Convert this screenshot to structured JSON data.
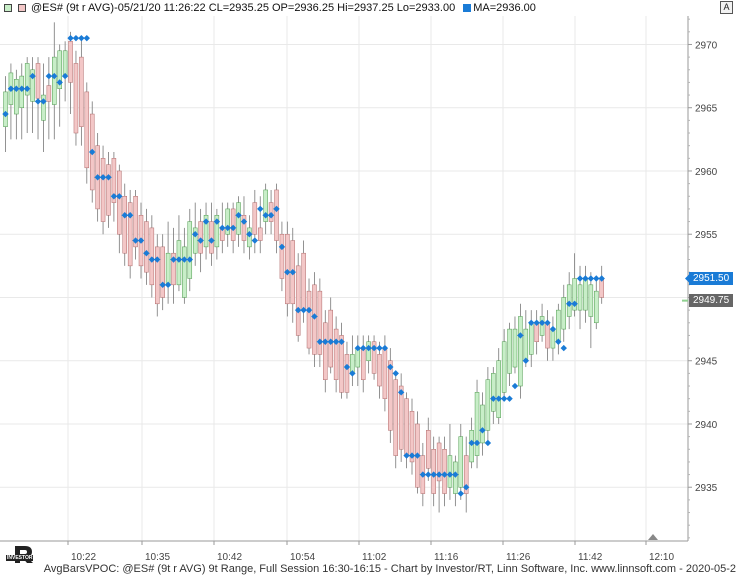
{
  "header": {
    "symbol_text": "@ES# (9t r AVG)-05/21/20 11:26:22 CL=2935.25 OP=2936.25 Hi=2937.25 Lo=2933.00",
    "ma_text": "MA=2936.00",
    "close_glyph": "A"
  },
  "footer": {
    "text": "AvgBarsVPOC: @ES# (9t r AVG) 9t Range, Full Session 16:30-16:15 - Chart by Investor/RT, Linn Software, Inc. www.linnsoft.com - 2020-05-2"
  },
  "logo": {
    "text": "INVESTOR"
  },
  "colors": {
    "up": "#c8eec8",
    "up_stroke": "#4c9a4c",
    "down": "#f3c7c7",
    "down_stroke": "#b06a6a",
    "wick": "#777777",
    "ma": "#1a7bd6",
    "grid": "#e9e9e9",
    "price_tag": "#1a7bd6",
    "last_tag": "#666666"
  },
  "chart_data": {
    "type": "candlestick",
    "x_tick_labels": [
      "10:22",
      "10:35",
      "10:42",
      "10:54",
      "11:02",
      "11:16",
      "11:26",
      "11:42",
      "12:10"
    ],
    "y_ticks": [
      2935,
      2940,
      2945,
      2950,
      2955,
      2960,
      2965,
      2970
    ],
    "y_range": [
      2930.75,
      2972.25
    ],
    "price_tag": "2951.50",
    "last_tag": "2949.75",
    "candles": [
      {
        "o": 2963.5,
        "c": 2966.25,
        "h": 2967.5,
        "l": 2961.5
      },
      {
        "o": 2965.25,
        "c": 2967.75,
        "h": 2968.5,
        "l": 2962.5
      },
      {
        "o": 2964.5,
        "c": 2967.25,
        "h": 2968.0,
        "l": 2962.5
      },
      {
        "o": 2965.0,
        "c": 2967.5,
        "h": 2968.5,
        "l": 2962.5
      },
      {
        "o": 2966.0,
        "c": 2968.5,
        "h": 2969.0,
        "l": 2963.0
      },
      {
        "o": 2965.5,
        "c": 2968.0,
        "h": 2969.0,
        "l": 2963.0
      },
      {
        "o": 2968.5,
        "c": 2965.75,
        "h": 2969.0,
        "l": 2962.5
      },
      {
        "o": 2964.0,
        "c": 2966.0,
        "h": 2968.5,
        "l": 2961.5
      },
      {
        "o": 2966.75,
        "c": 2965.5,
        "h": 2969.0,
        "l": 2962.5
      },
      {
        "o": 2965.25,
        "c": 2969.0,
        "h": 2971.75,
        "l": 2962.5
      },
      {
        "o": 2966.5,
        "c": 2969.5,
        "h": 2970.0,
        "l": 2963.5
      },
      {
        "o": 2967.5,
        "c": 2969.5,
        "h": 2970.25,
        "l": 2965.5
      },
      {
        "o": 2970.25,
        "c": 2967.0,
        "h": 2971.0,
        "l": 2964.5
      },
      {
        "o": 2968.5,
        "c": 2963.0,
        "h": 2969.5,
        "l": 2962.0
      },
      {
        "o": 2969.0,
        "c": 2963.5,
        "h": 2970.5,
        "l": 2962.0
      },
      {
        "o": 2966.25,
        "c": 2960.25,
        "h": 2967.0,
        "l": 2959.0
      },
      {
        "o": 2964.5,
        "c": 2958.5,
        "h": 2965.5,
        "l": 2957.5
      },
      {
        "o": 2962.0,
        "c": 2957.0,
        "h": 2963.0,
        "l": 2956.0
      },
      {
        "o": 2961.0,
        "c": 2956.0,
        "h": 2962.0,
        "l": 2955.0
      },
      {
        "o": 2960.5,
        "c": 2956.5,
        "h": 2961.5,
        "l": 2955.5
      },
      {
        "o": 2961.0,
        "c": 2957.5,
        "h": 2961.5,
        "l": 2956.0
      },
      {
        "o": 2960.0,
        "c": 2955.0,
        "h": 2960.5,
        "l": 2953.5
      },
      {
        "o": 2958.0,
        "c": 2953.5,
        "h": 2959.0,
        "l": 2952.5
      },
      {
        "o": 2957.5,
        "c": 2952.5,
        "h": 2958.5,
        "l": 2951.5
      },
      {
        "o": 2958.0,
        "c": 2954.0,
        "h": 2958.5,
        "l": 2953.0
      },
      {
        "o": 2956.5,
        "c": 2952.5,
        "h": 2957.5,
        "l": 2951.5
      },
      {
        "o": 2956.0,
        "c": 2952.0,
        "h": 2957.0,
        "l": 2951.0
      },
      {
        "o": 2955.5,
        "c": 2951.0,
        "h": 2956.5,
        "l": 2950.0
      },
      {
        "o": 2954.0,
        "c": 2949.5,
        "h": 2955.0,
        "l": 2948.5
      },
      {
        "o": 2954.0,
        "c": 2950.0,
        "h": 2955.0,
        "l": 2949.0
      },
      {
        "o": 2951.0,
        "c": 2953.5,
        "h": 2956.0,
        "l": 2949.5
      },
      {
        "o": 2953.5,
        "c": 2951.0,
        "h": 2955.5,
        "l": 2949.5
      },
      {
        "o": 2951.0,
        "c": 2954.5,
        "h": 2956.5,
        "l": 2950.5
      },
      {
        "o": 2950.0,
        "c": 2954.0,
        "h": 2955.5,
        "l": 2949.5
      },
      {
        "o": 2951.5,
        "c": 2956.0,
        "h": 2957.0,
        "l": 2950.5
      },
      {
        "o": 2953.5,
        "c": 2955.5,
        "h": 2957.5,
        "l": 2952.5
      },
      {
        "o": 2956.0,
        "c": 2953.5,
        "h": 2957.0,
        "l": 2952.0
      },
      {
        "o": 2954.0,
        "c": 2956.5,
        "h": 2957.5,
        "l": 2953.0
      },
      {
        "o": 2956.0,
        "c": 2953.5,
        "h": 2957.5,
        "l": 2952.5
      },
      {
        "o": 2954.0,
        "c": 2956.5,
        "h": 2957.0,
        "l": 2953.0
      },
      {
        "o": 2955.5,
        "c": 2954.5,
        "h": 2957.5,
        "l": 2953.5
      },
      {
        "o": 2955.0,
        "c": 2957.0,
        "h": 2957.5,
        "l": 2954.0
      },
      {
        "o": 2957.0,
        "c": 2954.5,
        "h": 2957.5,
        "l": 2953.5
      },
      {
        "o": 2955.0,
        "c": 2957.5,
        "h": 2958.0,
        "l": 2954.0
      },
      {
        "o": 2956.5,
        "c": 2954.5,
        "h": 2958.0,
        "l": 2953.5
      },
      {
        "o": 2954.0,
        "c": 2955.5,
        "h": 2956.5,
        "l": 2953.0
      },
      {
        "o": 2957.5,
        "c": 2955.0,
        "h": 2958.5,
        "l": 2953.5
      },
      {
        "o": 2955.5,
        "c": 2954.5,
        "h": 2958.0,
        "l": 2953.5
      },
      {
        "o": 2956.0,
        "c": 2958.5,
        "h": 2959.0,
        "l": 2955.0
      },
      {
        "o": 2957.5,
        "c": 2956.0,
        "h": 2958.5,
        "l": 2955.0
      },
      {
        "o": 2958.5,
        "c": 2954.5,
        "h": 2959.0,
        "l": 2953.5
      },
      {
        "o": 2955.0,
        "c": 2951.5,
        "h": 2956.0,
        "l": 2950.5
      },
      {
        "o": 2955.0,
        "c": 2949.5,
        "h": 2956.0,
        "l": 2948.5
      },
      {
        "o": 2954.5,
        "c": 2949.5,
        "h": 2955.5,
        "l": 2948.0
      },
      {
        "o": 2952.5,
        "c": 2947.0,
        "h": 2953.5,
        "l": 2946.5
      },
      {
        "o": 2953.5,
        "c": 2949.0,
        "h": 2954.5,
        "l": 2948.0
      },
      {
        "o": 2950.5,
        "c": 2946.0,
        "h": 2951.5,
        "l": 2945.5
      },
      {
        "o": 2951.0,
        "c": 2945.5,
        "h": 2952.0,
        "l": 2944.5
      },
      {
        "o": 2950.5,
        "c": 2945.5,
        "h": 2951.5,
        "l": 2944.5
      },
      {
        "o": 2948.0,
        "c": 2943.5,
        "h": 2949.0,
        "l": 2942.5
      },
      {
        "o": 2949.0,
        "c": 2944.5,
        "h": 2950.0,
        "l": 2944.0
      },
      {
        "o": 2947.5,
        "c": 2943.5,
        "h": 2948.5,
        "l": 2942.5
      },
      {
        "o": 2947.0,
        "c": 2942.5,
        "h": 2948.0,
        "l": 2942.0
      },
      {
        "o": 2945.5,
        "c": 2942.5,
        "h": 2946.5,
        "l": 2942.0
      },
      {
        "o": 2944.0,
        "c": 2945.5,
        "h": 2947.0,
        "l": 2943.0
      },
      {
        "o": 2944.5,
        "c": 2946.0,
        "h": 2947.0,
        "l": 2943.0
      },
      {
        "o": 2946.0,
        "c": 2943.5,
        "h": 2947.0,
        "l": 2942.5
      },
      {
        "o": 2945.0,
        "c": 2946.5,
        "h": 2947.0,
        "l": 2944.0
      },
      {
        "o": 2946.5,
        "c": 2944.0,
        "h": 2947.0,
        "l": 2943.5
      },
      {
        "o": 2945.5,
        "c": 2943.0,
        "h": 2946.5,
        "l": 2942.0
      },
      {
        "o": 2946.0,
        "c": 2942.0,
        "h": 2947.0,
        "l": 2941.0
      },
      {
        "o": 2945.0,
        "c": 2939.5,
        "h": 2946.0,
        "l": 2938.5
      },
      {
        "o": 2943.5,
        "c": 2937.5,
        "h": 2944.0,
        "l": 2936.5
      },
      {
        "o": 2943.0,
        "c": 2938.0,
        "h": 2944.0,
        "l": 2937.0
      },
      {
        "o": 2942.0,
        "c": 2937.5,
        "h": 2942.5,
        "l": 2936.5
      },
      {
        "o": 2941.0,
        "c": 2937.0,
        "h": 2942.0,
        "l": 2936.0
      },
      {
        "o": 2940.0,
        "c": 2935.0,
        "h": 2941.0,
        "l": 2934.5
      },
      {
        "o": 2937.5,
        "c": 2934.5,
        "h": 2938.5,
        "l": 2933.5
      },
      {
        "o": 2939.5,
        "c": 2936.5,
        "h": 2940.5,
        "l": 2935.5
      },
      {
        "o": 2938.0,
        "c": 2934.5,
        "h": 2939.0,
        "l": 2933.5
      },
      {
        "o": 2938.5,
        "c": 2935.5,
        "h": 2939.0,
        "l": 2933.0
      },
      {
        "o": 2938.0,
        "c": 2934.5,
        "h": 2939.0,
        "l": 2933.5
      },
      {
        "o": 2935.0,
        "c": 2937.5,
        "h": 2940.0,
        "l": 2934.0
      },
      {
        "o": 2934.5,
        "c": 2937.0,
        "h": 2937.5,
        "l": 2933.5
      },
      {
        "o": 2935.0,
        "c": 2939.0,
        "h": 2940.0,
        "l": 2934.0
      },
      {
        "o": 2937.5,
        "c": 2934.5,
        "h": 2939.0,
        "l": 2933.0
      },
      {
        "o": 2937.0,
        "c": 2939.5,
        "h": 2940.5,
        "l": 2936.5
      },
      {
        "o": 2937.5,
        "c": 2942.5,
        "h": 2943.5,
        "l": 2936.5
      },
      {
        "o": 2938.5,
        "c": 2941.5,
        "h": 2942.5,
        "l": 2937.5
      },
      {
        "o": 2939.5,
        "c": 2943.5,
        "h": 2944.5,
        "l": 2938.5
      },
      {
        "o": 2941.0,
        "c": 2944.0,
        "h": 2944.5,
        "l": 2940.0
      },
      {
        "o": 2940.5,
        "c": 2945.0,
        "h": 2946.0,
        "l": 2940.0
      },
      {
        "o": 2942.5,
        "c": 2946.5,
        "h": 2947.5,
        "l": 2942.0
      },
      {
        "o": 2944.0,
        "c": 2947.5,
        "h": 2948.0,
        "l": 2943.0
      },
      {
        "o": 2944.5,
        "c": 2947.5,
        "h": 2948.5,
        "l": 2944.0
      },
      {
        "o": 2943.0,
        "c": 2948.5,
        "h": 2949.5,
        "l": 2942.0
      },
      {
        "o": 2945.0,
        "c": 2947.5,
        "h": 2949.0,
        "l": 2944.5
      },
      {
        "o": 2945.5,
        "c": 2948.0,
        "h": 2949.0,
        "l": 2944.5
      },
      {
        "o": 2948.0,
        "c": 2946.5,
        "h": 2949.0,
        "l": 2945.5
      },
      {
        "o": 2947.0,
        "c": 2948.5,
        "h": 2949.5,
        "l": 2946.5
      },
      {
        "o": 2948.0,
        "c": 2946.0,
        "h": 2949.0,
        "l": 2945.0
      },
      {
        "o": 2946.0,
        "c": 2947.5,
        "h": 2948.5,
        "l": 2945.0
      },
      {
        "o": 2946.5,
        "c": 2949.0,
        "h": 2949.5,
        "l": 2945.5
      },
      {
        "o": 2947.5,
        "c": 2950.0,
        "h": 2951.0,
        "l": 2946.5
      },
      {
        "o": 2948.5,
        "c": 2951.0,
        "h": 2952.0,
        "l": 2947.5
      },
      {
        "o": 2949.0,
        "c": 2951.5,
        "h": 2953.5,
        "l": 2948.5
      },
      {
        "o": 2949.0,
        "c": 2951.0,
        "h": 2952.5,
        "l": 2947.5
      },
      {
        "o": 2949.0,
        "c": 2951.5,
        "h": 2952.5,
        "l": 2948.0
      },
      {
        "o": 2948.5,
        "c": 2951.0,
        "h": 2952.0,
        "l": 2946.0
      },
      {
        "o": 2948.0,
        "c": 2950.5,
        "h": 2951.5,
        "l": 2947.5
      },
      {
        "o": 2951.5,
        "c": 2950.0,
        "h": 2952.5,
        "l": 2949.5
      }
    ],
    "ma": [
      2964.5,
      2966.5,
      2966.5,
      2966.5,
      2966.5,
      2967.5,
      2965.5,
      2965.5,
      2967.5,
      2967.5,
      2967.0,
      2967.5,
      2970.5,
      2970.5,
      2970.5,
      2970.5,
      2961.5,
      2959.5,
      2959.5,
      2959.5,
      2958.0,
      2958.0,
      2956.5,
      2956.5,
      2954.5,
      2954.5,
      2953.5,
      2953.0,
      2953.0,
      2951.0,
      2951.0,
      2953.0,
      2953.0,
      2953.0,
      2953.0,
      2955.0,
      2954.5,
      2956.0,
      2954.5,
      2956.0,
      2955.5,
      2955.5,
      2955.5,
      2956.5,
      2956.0,
      2955.0,
      2954.5,
      2957.0,
      2956.5,
      2956.5,
      2957.0,
      2954.0,
      2952.0,
      2952.0,
      2949.0,
      2949.0,
      2949.0,
      2948.5,
      2946.5,
      2946.5,
      2946.5,
      2946.5,
      2946.5,
      2944.5,
      2944.0,
      2946.0,
      2946.0,
      2946.0,
      2946.0,
      2946.0,
      2946.0,
      2944.5,
      2944.0,
      2942.5,
      2937.5,
      2937.5,
      2937.5,
      2936.0,
      2936.0,
      2936.0,
      2936.0,
      2936.0,
      2936.0,
      2936.0,
      2934.5,
      2935.0,
      2938.5,
      2938.5,
      2939.5,
      2938.5,
      2942.0,
      2942.0,
      2942.0,
      2942.0,
      2943.0,
      2947.0,
      2945.0,
      2948.0,
      2948.0,
      2948.0,
      2948.0,
      2947.5,
      2946.5,
      2946.0,
      2949.5,
      2949.5,
      2951.5,
      2951.5,
      2951.5,
      2951.5,
      2951.5
    ]
  }
}
